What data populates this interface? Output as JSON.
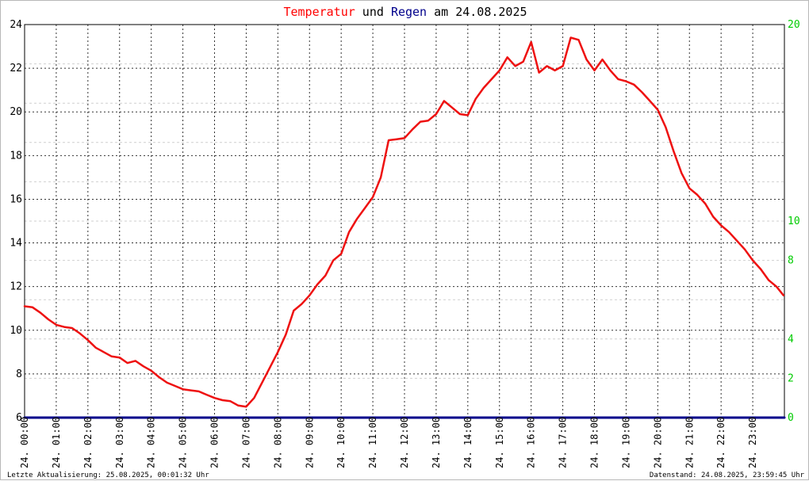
{
  "header": {
    "title_part1": "Temperatur",
    "title_part2": " und ",
    "title_part3": "Regen",
    "title_part4": " am 24.08.2025",
    "color_temp": "#ff0000",
    "color_rain": "#00008b",
    "color_text": "#000000"
  },
  "footer": {
    "left": "Letzte Aktualisierung: 25.08.2025, 00:01:32 Uhr",
    "right": "Datenstand: 24.08.2025, 23:59:45 Uhr"
  },
  "chart_data": {
    "type": "line",
    "title": "Temperatur und Regen am 24.08.2025",
    "x_tick_labels": [
      "24. 00:00",
      "24. 01:00",
      "24. 02:00",
      "24. 03:00",
      "24. 04:00",
      "24. 05:00",
      "24. 06:00",
      "24. 07:00",
      "24. 08:00",
      "24. 09:00",
      "24. 10:00",
      "24. 11:00",
      "24. 12:00",
      "24. 13:00",
      "24. 14:00",
      "24. 15:00",
      "24. 16:00",
      "24. 17:00",
      "24. 18:00",
      "24. 19:00",
      "24. 20:00",
      "24. 21:00",
      "24. 22:00",
      "24. 23:00"
    ],
    "xlim_hours": [
      0,
      24
    ],
    "y_left": {
      "ylim": [
        6,
        24
      ],
      "ticks": [
        "6",
        "8",
        "10",
        "12",
        "14",
        "16",
        "18",
        "20",
        "22",
        "24"
      ],
      "color": "#000000"
    },
    "y_right": {
      "ylim": [
        0,
        20
      ],
      "ticks": [
        "0",
        "2",
        "4",
        "6",
        "8",
        "10",
        "12",
        "14",
        "16",
        "18",
        "20"
      ],
      "ticks_shown": [
        "0",
        "2",
        "4",
        "8",
        "10",
        "20"
      ],
      "color": "#00cc00"
    },
    "grid": true,
    "series": [
      {
        "key": "temperature",
        "axis": "left",
        "color": "#ee1111",
        "x": [
          0,
          0.25,
          0.5,
          0.75,
          1.0,
          1.25,
          1.5,
          1.75,
          2.0,
          2.25,
          2.5,
          2.75,
          3.0,
          3.25,
          3.5,
          3.75,
          4.0,
          4.25,
          4.5,
          4.75,
          5.0,
          5.25,
          5.5,
          5.75,
          6.0,
          6.25,
          6.5,
          6.75,
          7.0,
          7.25,
          7.5,
          7.75,
          8.0,
          8.25,
          8.5,
          8.75,
          9.0,
          9.25,
          9.5,
          9.75,
          10.0,
          10.25,
          10.5,
          10.75,
          11.0,
          11.25,
          11.5,
          11.75,
          12.0,
          12.25,
          12.5,
          12.75,
          13.0,
          13.25,
          13.5,
          13.75,
          14.0,
          14.25,
          14.5,
          14.75,
          15.0,
          15.25,
          15.5,
          15.75,
          16.0,
          16.25,
          16.5,
          16.75,
          17.0,
          17.25,
          17.5,
          17.75,
          18.0,
          18.25,
          18.5,
          18.75,
          19.0,
          19.25,
          19.5,
          19.75,
          20.0,
          20.25,
          20.5,
          20.75,
          21.0,
          21.25,
          21.5,
          21.75,
          22.0,
          22.25,
          22.5,
          22.75,
          23.0,
          23.25,
          23.5,
          23.75,
          23.97
        ],
        "values": [
          11.1,
          11.05,
          10.8,
          10.5,
          10.25,
          10.15,
          10.1,
          9.85,
          9.55,
          9.2,
          9.0,
          8.8,
          8.75,
          8.5,
          8.6,
          8.35,
          8.15,
          7.85,
          7.6,
          7.45,
          7.3,
          7.25,
          7.2,
          7.05,
          6.9,
          6.8,
          6.75,
          6.55,
          6.5,
          6.9,
          7.6,
          8.3,
          9.0,
          9.8,
          10.9,
          11.2,
          11.6,
          12.1,
          12.5,
          13.2,
          13.5,
          14.5,
          15.1,
          15.6,
          16.1,
          17.0,
          18.7,
          18.75,
          18.8,
          19.2,
          19.55,
          19.6,
          19.9,
          20.5,
          20.2,
          19.9,
          19.85,
          20.6,
          21.1,
          21.5,
          21.9,
          22.5,
          22.1,
          22.3,
          23.2,
          21.8,
          22.1,
          21.9,
          22.1,
          23.4,
          23.3,
          22.4,
          21.9,
          22.4,
          21.9,
          21.5,
          21.4,
          21.25,
          20.9,
          20.5,
          20.1,
          19.3,
          18.2,
          17.2,
          16.5,
          16.2,
          15.8,
          15.2,
          14.8,
          14.5,
          14.1,
          13.7,
          13.2,
          12.8,
          12.3,
          12.0,
          11.6
        ]
      },
      {
        "key": "rain",
        "axis": "right",
        "color": "#00008b",
        "x": [
          0,
          24
        ],
        "values": [
          0,
          0
        ]
      }
    ]
  }
}
